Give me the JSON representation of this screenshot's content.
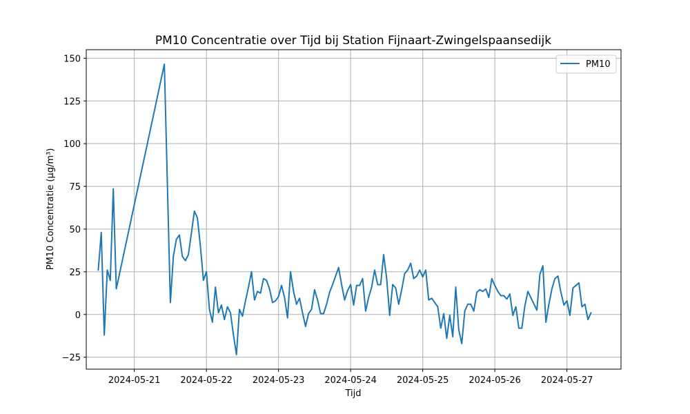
{
  "chart_data": {
    "type": "line",
    "title": "PM10 Concentratie over Tijd bij Station Fijnaart-Zwingelspaansedijk",
    "xlabel": "Tijd",
    "ylabel": "PM10 Concentratie (µg/m³)",
    "x_tick_labels": [
      "2024-05-21",
      "2024-05-22",
      "2024-05-23",
      "2024-05-24",
      "2024-05-25",
      "2024-05-26",
      "2024-05-27"
    ],
    "y_tick_labels": [
      "−25",
      "0",
      "25",
      "50",
      "75",
      "100",
      "125",
      "150"
    ],
    "ylim": [
      -32,
      155
    ],
    "xlim": [
      "2024-05-20 08:00",
      "2024-05-27 18:00"
    ],
    "grid": true,
    "legend_position": "top-right",
    "series": [
      {
        "name": "PM10",
        "color": "#1f77b4",
        "points": [
          [
            "2024-05-20 12:00",
            26
          ],
          [
            "2024-05-20 13:00",
            48
          ],
          [
            "2024-05-20 14:00",
            -12
          ],
          [
            "2024-05-20 15:00",
            26
          ],
          [
            "2024-05-20 16:00",
            20
          ],
          [
            "2024-05-20 17:00",
            73.5
          ],
          [
            "2024-05-20 18:00",
            15
          ],
          [
            "2024-05-21 10:00",
            146.5
          ],
          [
            "2024-05-21 12:00",
            7
          ],
          [
            "2024-05-21 13:00",
            34
          ],
          [
            "2024-05-21 14:00",
            44
          ],
          [
            "2024-05-21 15:00",
            46.5
          ],
          [
            "2024-05-21 16:00",
            34
          ],
          [
            "2024-05-21 17:00",
            31.5
          ],
          [
            "2024-05-21 18:00",
            35
          ],
          [
            "2024-05-21 20:00",
            60.5
          ],
          [
            "2024-05-21 21:00",
            56.5
          ],
          [
            "2024-05-21 22:00",
            40
          ],
          [
            "2024-05-21 23:00",
            20
          ],
          [
            "2024-05-22 00:00",
            25
          ],
          [
            "2024-05-22 01:00",
            3
          ],
          [
            "2024-05-22 02:00",
            -4.5
          ],
          [
            "2024-05-22 03:00",
            16
          ],
          [
            "2024-05-22 04:00",
            1
          ],
          [
            "2024-05-22 05:00",
            5.5
          ],
          [
            "2024-05-22 06:00",
            -3
          ],
          [
            "2024-05-22 07:00",
            4.5
          ],
          [
            "2024-05-22 08:00",
            1
          ],
          [
            "2024-05-22 09:00",
            -12
          ],
          [
            "2024-05-22 10:00",
            -23.5
          ],
          [
            "2024-05-22 11:00",
            3
          ],
          [
            "2024-05-22 12:00",
            -1
          ],
          [
            "2024-05-22 13:00",
            8
          ],
          [
            "2024-05-22 14:00",
            16
          ],
          [
            "2024-05-22 15:00",
            25
          ],
          [
            "2024-05-22 16:00",
            8.5
          ],
          [
            "2024-05-22 17:00",
            13.5
          ],
          [
            "2024-05-22 18:00",
            12.5
          ],
          [
            "2024-05-22 19:00",
            21
          ],
          [
            "2024-05-22 20:00",
            20
          ],
          [
            "2024-05-22 21:00",
            15
          ],
          [
            "2024-05-22 22:00",
            7
          ],
          [
            "2024-05-22 23:00",
            8
          ],
          [
            "2024-05-23 00:00",
            10.5
          ],
          [
            "2024-05-23 01:00",
            17
          ],
          [
            "2024-05-23 02:00",
            10
          ],
          [
            "2024-05-23 03:00",
            -2
          ],
          [
            "2024-05-23 04:00",
            25
          ],
          [
            "2024-05-23 05:00",
            13.5
          ],
          [
            "2024-05-23 06:00",
            6
          ],
          [
            "2024-05-23 07:00",
            9.5
          ],
          [
            "2024-05-23 08:00",
            1
          ],
          [
            "2024-05-23 09:00",
            -7
          ],
          [
            "2024-05-23 10:00",
            0.5
          ],
          [
            "2024-05-23 11:00",
            3
          ],
          [
            "2024-05-23 12:00",
            14.5
          ],
          [
            "2024-05-23 13:00",
            8.5
          ],
          [
            "2024-05-23 14:00",
            0.5
          ],
          [
            "2024-05-23 15:00",
            0.5
          ],
          [
            "2024-05-23 16:00",
            6
          ],
          [
            "2024-05-23 17:00",
            13
          ],
          [
            "2024-05-23 18:00",
            17.5
          ],
          [
            "2024-05-23 19:00",
            22.5
          ],
          [
            "2024-05-23 20:00",
            27.5
          ],
          [
            "2024-05-23 21:00",
            17.5
          ],
          [
            "2024-05-23 22:00",
            8.5
          ],
          [
            "2024-05-23 23:00",
            14
          ],
          [
            "2024-05-24 00:00",
            17.5
          ],
          [
            "2024-05-24 01:00",
            5.5
          ],
          [
            "2024-05-24 02:00",
            17
          ],
          [
            "2024-05-24 03:00",
            17
          ],
          [
            "2024-05-24 04:00",
            21
          ],
          [
            "2024-05-24 05:00",
            2
          ],
          [
            "2024-05-24 06:00",
            10
          ],
          [
            "2024-05-24 07:00",
            16
          ],
          [
            "2024-05-24 08:00",
            26
          ],
          [
            "2024-05-24 09:00",
            17.5
          ],
          [
            "2024-05-24 10:00",
            17.5
          ],
          [
            "2024-05-24 11:00",
            35
          ],
          [
            "2024-05-24 12:00",
            21
          ],
          [
            "2024-05-24 13:00",
            -0.5
          ],
          [
            "2024-05-24 14:00",
            17.5
          ],
          [
            "2024-05-24 15:00",
            15.5
          ],
          [
            "2024-05-24 16:00",
            6
          ],
          [
            "2024-05-24 17:00",
            14.5
          ],
          [
            "2024-05-24 18:00",
            24
          ],
          [
            "2024-05-24 19:00",
            26
          ],
          [
            "2024-05-24 20:00",
            30
          ],
          [
            "2024-05-24 21:00",
            21
          ],
          [
            "2024-05-24 22:00",
            22.5
          ],
          [
            "2024-05-24 23:00",
            26
          ],
          [
            "2024-05-25 00:00",
            22
          ],
          [
            "2024-05-25 01:00",
            26
          ],
          [
            "2024-05-25 02:00",
            8.5
          ],
          [
            "2024-05-25 03:00",
            9.5
          ],
          [
            "2024-05-25 04:00",
            7
          ],
          [
            "2024-05-25 05:00",
            4.5
          ],
          [
            "2024-05-25 06:00",
            -8
          ],
          [
            "2024-05-25 07:00",
            0.5
          ],
          [
            "2024-05-25 08:00",
            -14
          ],
          [
            "2024-05-25 09:00",
            -0.5
          ],
          [
            "2024-05-25 10:00",
            -13
          ],
          [
            "2024-05-25 11:00",
            16
          ],
          [
            "2024-05-25 12:00",
            -9
          ],
          [
            "2024-05-25 13:00",
            -17
          ],
          [
            "2024-05-25 14:00",
            2
          ],
          [
            "2024-05-25 15:00",
            6
          ],
          [
            "2024-05-25 16:00",
            6
          ],
          [
            "2024-05-25 17:00",
            2
          ],
          [
            "2024-05-25 18:00",
            13
          ],
          [
            "2024-05-25 19:00",
            14.5
          ],
          [
            "2024-05-25 20:00",
            13.5
          ],
          [
            "2024-05-25 21:00",
            15
          ],
          [
            "2024-05-25 22:00",
            10
          ],
          [
            "2024-05-25 23:00",
            21
          ],
          [
            "2024-05-26 00:00",
            17
          ],
          [
            "2024-05-26 01:00",
            13.5
          ],
          [
            "2024-05-26 02:00",
            11
          ],
          [
            "2024-05-26 03:00",
            11
          ],
          [
            "2024-05-26 04:00",
            9
          ],
          [
            "2024-05-26 05:00",
            12
          ],
          [
            "2024-05-26 06:00",
            -0.5
          ],
          [
            "2024-05-26 07:00",
            4.5
          ],
          [
            "2024-05-26 08:00",
            -8
          ],
          [
            "2024-05-26 09:00",
            -8
          ],
          [
            "2024-05-26 10:00",
            5
          ],
          [
            "2024-05-26 11:00",
            13.5
          ],
          [
            "2024-05-26 14:00",
            2.5
          ],
          [
            "2024-05-26 15:00",
            23.5
          ],
          [
            "2024-05-26 16:00",
            28.5
          ],
          [
            "2024-05-26 17:00",
            -4.5
          ],
          [
            "2024-05-26 18:00",
            6
          ],
          [
            "2024-05-26 19:00",
            15
          ],
          [
            "2024-05-26 20:00",
            21
          ],
          [
            "2024-05-26 21:00",
            22.5
          ],
          [
            "2024-05-26 22:00",
            13
          ],
          [
            "2024-05-26 23:00",
            5.5
          ],
          [
            "2024-05-27 00:00",
            8
          ],
          [
            "2024-05-27 01:00",
            -0.5
          ],
          [
            "2024-05-27 02:00",
            15.5
          ],
          [
            "2024-05-27 03:00",
            17
          ],
          [
            "2024-05-27 04:00",
            18.5
          ],
          [
            "2024-05-27 05:00",
            4.5
          ],
          [
            "2024-05-27 06:00",
            6
          ],
          [
            "2024-05-27 07:00",
            -3
          ],
          [
            "2024-05-27 08:00",
            1
          ]
        ]
      }
    ]
  }
}
